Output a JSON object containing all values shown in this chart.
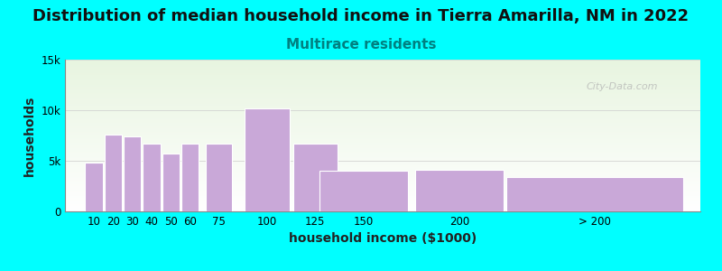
{
  "title": "Distribution of median household income in Tierra Amarilla, NM in 2022",
  "subtitle": "Multirace residents",
  "xlabel": "household income ($1000)",
  "ylabel": "households",
  "background_color": "#00FFFF",
  "plot_bg_gradient_top": "#e8f5e0",
  "plot_bg_gradient_bottom": "#ffffff",
  "bar_color": "#c9a8d8",
  "bar_edge_color": "#ffffff",
  "bar_centers": [
    10,
    20,
    30,
    40,
    50,
    60,
    75,
    100,
    125,
    150,
    200,
    270
  ],
  "bar_widths": [
    10,
    10,
    10,
    10,
    10,
    10,
    15,
    25,
    25,
    50,
    50,
    100
  ],
  "bar_labels": [
    "10",
    "20",
    "30",
    "40",
    "50",
    "60",
    "75",
    "100",
    "125",
    "150",
    "200",
    "> 200"
  ],
  "values": [
    4800,
    7600,
    7400,
    6700,
    5700,
    6700,
    6700,
    10200,
    6700,
    4000,
    4100,
    3400
  ],
  "ylim": [
    0,
    15000
  ],
  "yticks": [
    0,
    5000,
    10000,
    15000
  ],
  "ytick_labels": [
    "0",
    "5k",
    "10k",
    "15k"
  ],
  "xlim": [
    -5,
    325
  ],
  "xtick_positions": [
    10,
    20,
    30,
    40,
    50,
    60,
    75,
    100,
    125,
    150,
    200,
    270
  ],
  "xtick_labels": [
    "10",
    "20",
    "30",
    "40",
    "50",
    "60",
    "75",
    "100",
    "125",
    "150",
    "200",
    "> 200"
  ],
  "title_fontsize": 13,
  "subtitle_fontsize": 11,
  "subtitle_color": "#008080",
  "axis_label_fontsize": 10,
  "watermark_text": "City-Data.com",
  "watermark_color": "#b0b0b0"
}
